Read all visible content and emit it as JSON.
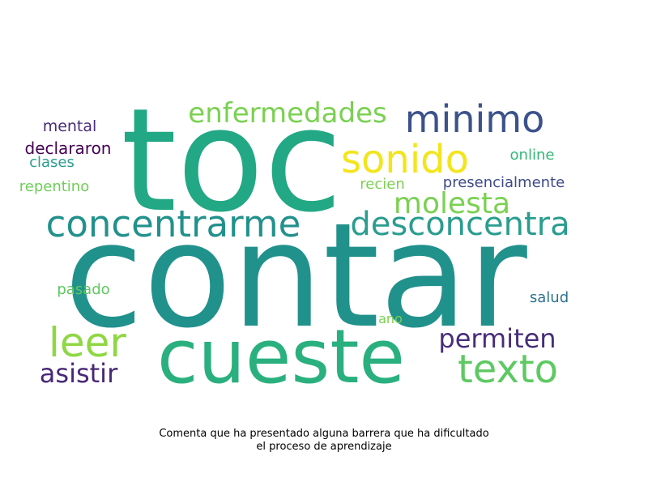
{
  "caption": {
    "line1": "Comenta que ha presentado alguna barrera que ha dificultado",
    "line2": "el proceso de aprendizaje"
  },
  "words": [
    {
      "text": "contar",
      "color": "#21918c"
    },
    {
      "text": "toc",
      "color": "#22a884"
    },
    {
      "text": "cueste",
      "color": "#2ab07f"
    },
    {
      "text": "concentrarme",
      "color": "#21918c"
    },
    {
      "text": "desconcentra",
      "color": "#2a9d8f"
    },
    {
      "text": "minimo",
      "color": "#3b528b"
    },
    {
      "text": "sonido",
      "color": "#f2e51d"
    },
    {
      "text": "molesta",
      "color": "#7ad151"
    },
    {
      "text": "enfermedades",
      "color": "#7ad151"
    },
    {
      "text": "leer",
      "color": "#8fd744"
    },
    {
      "text": "texto",
      "color": "#5ec962"
    },
    {
      "text": "permiten",
      "color": "#472d7b"
    },
    {
      "text": "asistir",
      "color": "#482878"
    },
    {
      "text": "mental",
      "color": "#472c7a"
    },
    {
      "text": "declararon",
      "color": "#440154"
    },
    {
      "text": "clases",
      "color": "#2a9d8f"
    },
    {
      "text": "repentino",
      "color": "#6ece58"
    },
    {
      "text": "online",
      "color": "#35b779"
    },
    {
      "text": "recien",
      "color": "#7ad151"
    },
    {
      "text": "presencialmente",
      "color": "#3e4a89"
    },
    {
      "text": "pasado",
      "color": "#5ec962"
    },
    {
      "text": "salud",
      "color": "#2c728e"
    },
    {
      "text": "ano",
      "color": "#7ad151"
    }
  ]
}
